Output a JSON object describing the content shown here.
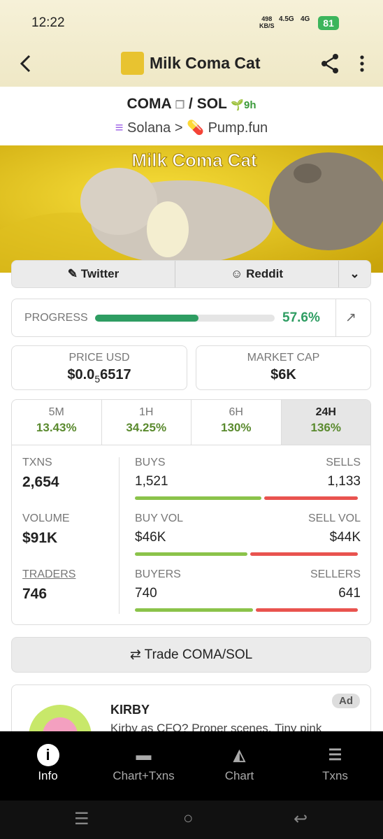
{
  "status_bar": {
    "time": "12:22",
    "speed": "498",
    "speed_unit": "KB/S",
    "net1": "4.5G",
    "net2": "4G",
    "battery": "81"
  },
  "header": {
    "title": "Milk Coma Cat"
  },
  "pair": {
    "base": "COMA",
    "separator": "/",
    "quote": "SOL",
    "age": "9h",
    "chain": "Solana",
    "dex": "Pump.fun"
  },
  "banner": {
    "title": "Milk Coma Cat"
  },
  "socials": [
    "Twitter",
    "Reddit"
  ],
  "progress": {
    "label": "PROGRESS",
    "value": 57.6,
    "value_label": "57.6%"
  },
  "price": {
    "label": "PRICE USD",
    "value": "$0.0",
    "subscript": "5",
    "rest": "6517"
  },
  "market_cap": {
    "label": "MARKET CAP",
    "value": "$6K"
  },
  "timeframes": [
    {
      "label": "5M",
      "change": "13.43%"
    },
    {
      "label": "1H",
      "change": "34.25%"
    },
    {
      "label": "6H",
      "change": "130%"
    },
    {
      "label": "24H",
      "change": "136%"
    }
  ],
  "stats": [
    {
      "left": {
        "label": "TXNS",
        "value": "2,654"
      },
      "buy": {
        "label": "BUYS",
        "value": 1521,
        "value_label": "1,521"
      },
      "sell": {
        "label": "SELLS",
        "value": 1133,
        "value_label": "1,133"
      }
    },
    {
      "left": {
        "label": "VOLUME",
        "value": "$91K"
      },
      "buy": {
        "label": "BUY VOL",
        "value": 46000,
        "value_label": "$46K"
      },
      "sell": {
        "label": "SELL VOL",
        "value": 44000,
        "value_label": "$44K"
      }
    },
    {
      "left": {
        "label": "TRADERS",
        "value": "746"
      },
      "buy": {
        "label": "BUYERS",
        "value": 740
      },
      "sell": {
        "label": "SELLERS",
        "value": 641
      }
    }
  ],
  "trade": {
    "label": "Trade COMA/SOL"
  },
  "ad": {
    "badge": "Ad",
    "title": "KIRBY",
    "text": "Kirby as CFO? Proper scenes. Tiny pink"
  },
  "nav": [
    "Info",
    "Chart+Txns",
    "Chart",
    "Txns"
  ]
}
